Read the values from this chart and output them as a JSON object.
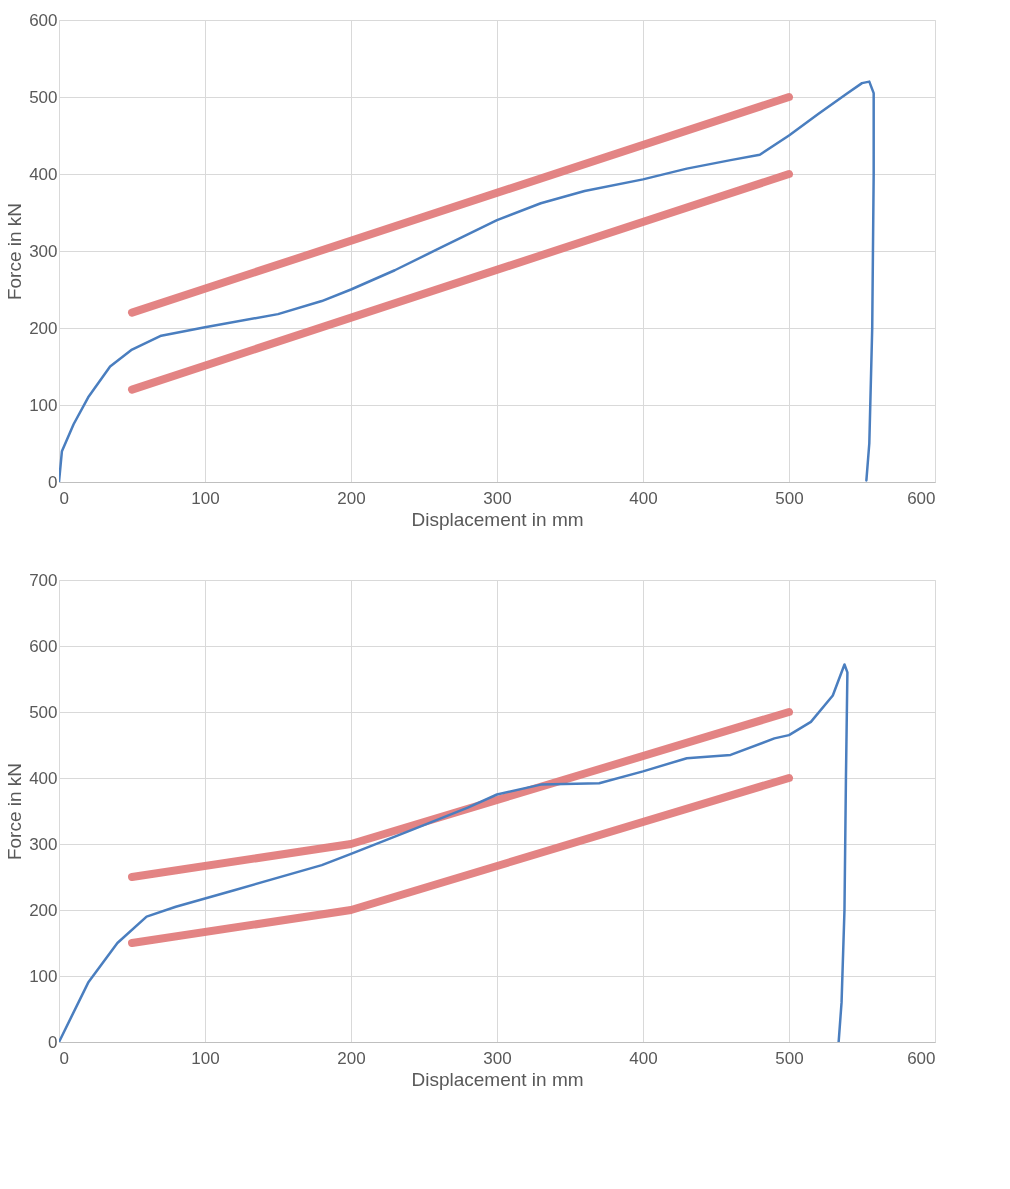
{
  "chart_data": [
    {
      "type": "line",
      "xlabel": "Displacement in mm",
      "ylabel": "Force in kN",
      "xlim": [
        0,
        600
      ],
      "xticks": [
        0,
        100,
        200,
        300,
        400,
        500,
        600
      ],
      "ylim": [
        0,
        600
      ],
      "yticks": [
        0,
        100,
        200,
        300,
        400,
        500,
        600
      ],
      "grid": true,
      "line_style": "solid",
      "marker": "none",
      "series": [
        {
          "color": "#4a7ebf",
          "x": [
            0,
            2,
            10,
            20,
            35,
            50,
            70,
            100,
            150,
            180,
            200,
            230,
            260,
            300,
            330,
            360,
            400,
            430,
            460,
            480,
            500,
            520,
            540,
            550,
            555,
            558,
            558,
            557,
            555,
            553
          ],
          "values": [
            0,
            40,
            75,
            110,
            150,
            172,
            190,
            201,
            218,
            235,
            250,
            275,
            303,
            340,
            362,
            378,
            393,
            407,
            418,
            425,
            450,
            478,
            505,
            518,
            520,
            505,
            400,
            200,
            50,
            2
          ]
        },
        {
          "color": "#e07777",
          "x": [
            50,
            500
          ],
          "values": [
            220,
            500
          ]
        },
        {
          "color": "#e07777",
          "x": [
            50,
            500
          ],
          "values": [
            120,
            400
          ]
        }
      ]
    },
    {
      "type": "line",
      "xlabel": "Displacement in mm",
      "ylabel": "Force in kN",
      "xlim": [
        0,
        600
      ],
      "xticks": [
        0,
        100,
        200,
        300,
        400,
        500,
        600
      ],
      "ylim": [
        0,
        700
      ],
      "yticks": [
        0,
        100,
        200,
        300,
        400,
        500,
        600,
        700
      ],
      "grid": true,
      "line_style": "solid",
      "marker": "none",
      "series": [
        {
          "color": "#4a7ebf",
          "x": [
            0,
            20,
            40,
            60,
            80,
            120,
            180,
            200,
            240,
            280,
            300,
            330,
            370,
            400,
            430,
            460,
            490,
            500,
            515,
            530,
            538,
            540,
            539,
            538,
            536,
            534
          ],
          "values": [
            0,
            90,
            150,
            190,
            205,
            230,
            268,
            285,
            320,
            355,
            375,
            390,
            392,
            410,
            430,
            435,
            460,
            465,
            485,
            525,
            572,
            560,
            400,
            200,
            60,
            0
          ]
        },
        {
          "color": "#e07777",
          "x": [
            50,
            200,
            500
          ],
          "values": [
            250,
            300,
            500
          ]
        },
        {
          "color": "#e07777",
          "x": [
            50,
            200,
            500
          ],
          "values": [
            150,
            200,
            400
          ]
        }
      ]
    }
  ]
}
